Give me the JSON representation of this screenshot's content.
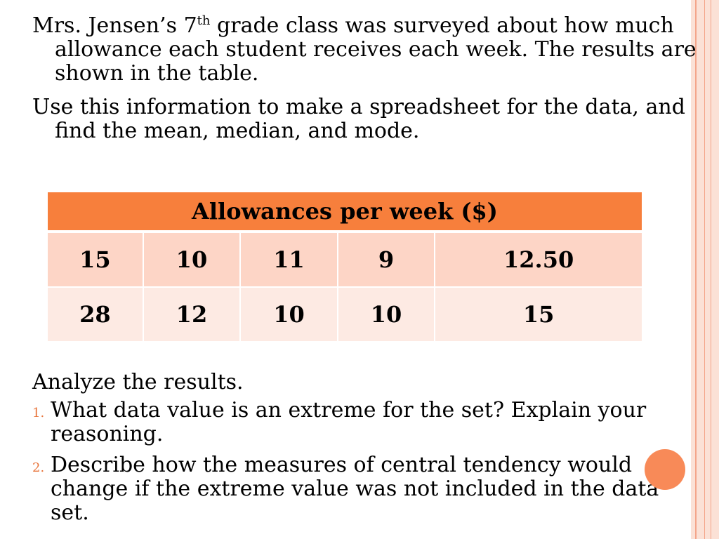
{
  "intro": {
    "line1_pre": "Mrs. Jensen’s 7",
    "line1_sup": "th",
    "line1_post": " grade class was surveyed about how much allowance each student receives each week. The results are shown in the table.",
    "line2": "Use this information to make a spreadsheet for the data, and find the mean, median, and mode."
  },
  "table": {
    "title": "Allowances per week ($)",
    "rows": [
      [
        "15",
        "10",
        "11",
        "9",
        "12.50"
      ],
      [
        "28",
        "12",
        "10",
        "10",
        "15"
      ]
    ]
  },
  "analysis": {
    "heading": "Analyze the results.",
    "questions": [
      {
        "num": "1.",
        "text": "What data value is an extreme for the set? Explain your reasoning."
      },
      {
        "num": "2.",
        "text": "Describe how the measures of central tendency would change if the extreme value was not included in the data set."
      }
    ]
  },
  "colors": {
    "header": "#f77f3c",
    "row_odd": "#fdd5c6",
    "row_even": "#fdeae3",
    "accent": "#e8743b"
  }
}
